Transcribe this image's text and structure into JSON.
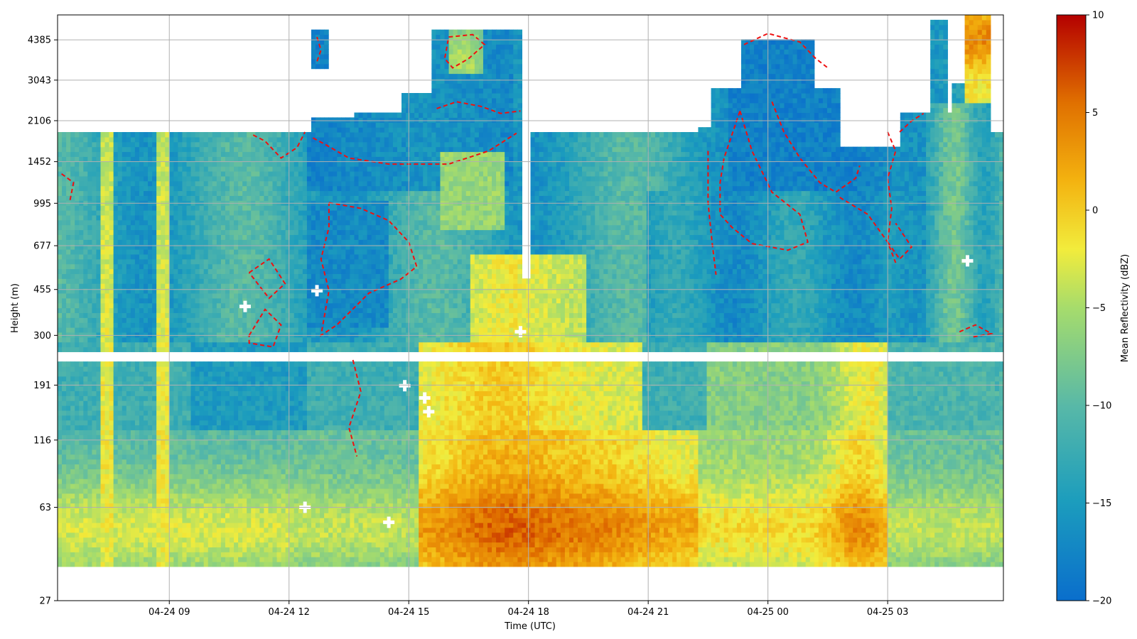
{
  "chart_data": {
    "type": "heatmap",
    "title": "",
    "xlabel": "Time (UTC)",
    "ylabel": "Height (m)",
    "x_ticks": [
      "04-24 09",
      "04-24 12",
      "04-24 15",
      "04-24 18",
      "04-24 21",
      "04-25 00",
      "04-25 03"
    ],
    "x_range_hours": [
      6.2,
      29.9
    ],
    "y_ticks": [
      "27",
      "63",
      "116",
      "191",
      "300",
      "455",
      "677",
      "995",
      "1452",
      "2106",
      "3043",
      "4385"
    ],
    "y_scale": "log",
    "y_range": [
      27,
      5500
    ],
    "grid": true,
    "colorbar": {
      "label": "Mean Reflectivity (dBZ)",
      "min": -20,
      "max": 10,
      "ticks": [
        "10",
        "5",
        "0",
        "−5",
        "−10",
        "−15",
        "−20"
      ],
      "colormap": [
        "#0a6ecc",
        "#1c9dbd",
        "#57b8a8",
        "#a6dc6c",
        "#f2ec3c",
        "#f3b10f",
        "#e07000",
        "#b40000"
      ]
    },
    "contour": {
      "color": "#ee1111",
      "style": "dashed",
      "level_dbz": -17
    },
    "markers": {
      "shape": "plus",
      "color": "#ffffff"
    }
  }
}
